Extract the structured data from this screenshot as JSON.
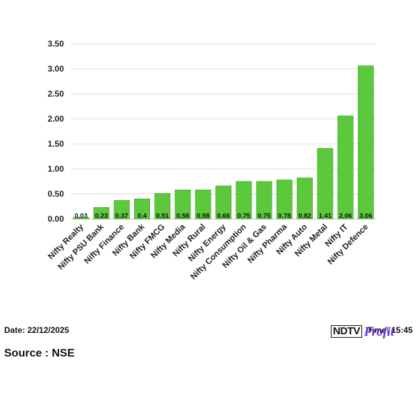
{
  "chart_data": {
    "type": "bar",
    "categories": [
      "Nifty Realty",
      "Nifty PSU Bank",
      "Nifty Finance",
      "Nifty Bank",
      "Nifty FMCG",
      "Nifty Media",
      "Nifty Rural",
      "Nifty Energy",
      "Nifty Consumption",
      "Nifty Oil & Gas",
      "Nifty Pharma",
      "Nifty Auto",
      "Nifty Metal",
      "Nifty IT",
      "Nifty Defence"
    ],
    "values": [
      0.03,
      0.23,
      0.37,
      0.4,
      0.51,
      0.58,
      0.58,
      0.66,
      0.75,
      0.75,
      0.78,
      0.82,
      1.41,
      2.06,
      3.06
    ],
    "value_labels": [
      "0.03",
      "0.23",
      "0.37",
      "0.4",
      "0.51",
      "0.58",
      "0.58",
      "0.66",
      "0.75",
      "0.75",
      "0.78",
      "0.82",
      "1.41",
      "2.06",
      "3.06"
    ],
    "yticks": [
      "0.00",
      "0.50",
      "1.00",
      "1.50",
      "2.00",
      "2.50",
      "3.00",
      "3.50"
    ],
    "ylim": [
      0,
      3.5
    ],
    "grid": true,
    "bar_color": "#5cc83c",
    "bar_edge_color": "#3aa025",
    "title": "",
    "xlabel": "",
    "ylabel": ""
  },
  "footer": {
    "date": "Date: 22/12/2025",
    "source": "Source : NSE",
    "time": "Time: 15:45",
    "brand_ndtv": "NDTV",
    "brand_profit": "Profit"
  }
}
